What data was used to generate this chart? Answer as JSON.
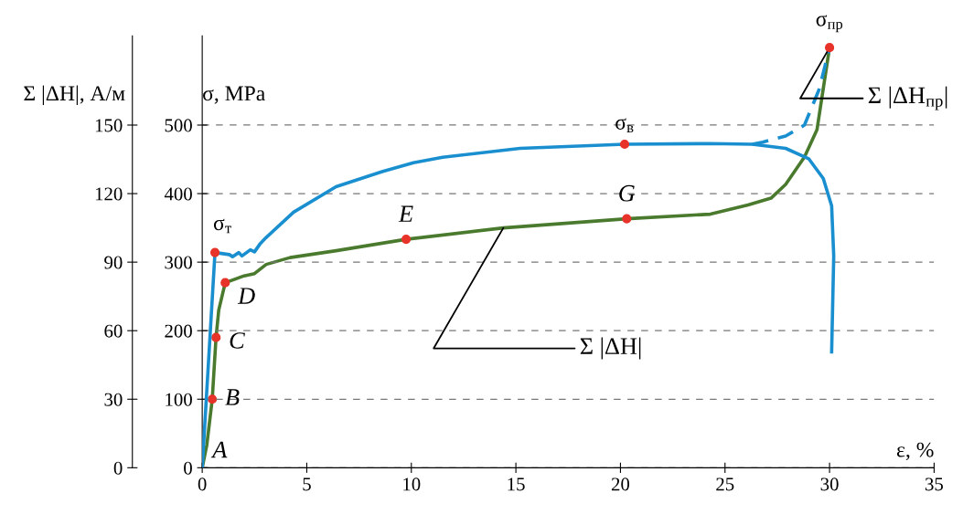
{
  "chart_data": {
    "type": "line",
    "xlabel": "ε, %",
    "ylabel": "σ, MPa",
    "y2label": "Σ |ΔH|, А/м",
    "xlim": [
      0,
      35
    ],
    "xticks": [
      0,
      5,
      10,
      15,
      20,
      25,
      30,
      35
    ],
    "ylim": [
      0,
      630
    ],
    "yticks": [
      0,
      100,
      200,
      300,
      400,
      500
    ],
    "y2lim": [
      0,
      189
    ],
    "y2ticks": [
      0,
      30,
      60,
      90,
      120,
      150
    ],
    "grid": "y",
    "series": [
      {
        "color": "#1a8fd0",
        "line_style": "solid",
        "x": [
          0,
          0.61,
          1.3,
          1.45,
          1.75,
          1.9,
          2.3,
          2.5,
          2.75,
          3.06,
          4.37,
          6.4,
          8.6,
          10.1,
          11.5,
          15.2,
          20.2,
          24.3,
          26.3,
          27.9,
          29.0,
          29.7,
          30.1,
          30.2,
          30.1
        ],
        "values": [
          0,
          314,
          311,
          308,
          314,
          309,
          318,
          315,
          326,
          336,
          373,
          410,
          432,
          445,
          453,
          466,
          472,
          473,
          472,
          466,
          451,
          422,
          382,
          309,
          169
        ]
      },
      {
        "color": "#1a8fd0",
        "line_style": "dashed",
        "x": [
          26.3,
          26.8,
          27.9,
          28.8,
          29.5,
          30.0
        ],
        "values": [
          472,
          475,
          484,
          500,
          552,
          613
        ]
      },
      {
        "color": "#4a7a2e",
        "line_style": "solid",
        "axis": "y2",
        "x": [
          0,
          0.22,
          0.48,
          0.66,
          0.79,
          1.1,
          2.0,
          2.5,
          3.06,
          4.2,
          6.4,
          9.75,
          14.4,
          20.3,
          24.3,
          26.1,
          27.2,
          27.9,
          28.8,
          29.4,
          30.0
        ],
        "values": [
          0,
          10,
          30,
          57,
          69,
          81,
          84,
          85,
          89,
          92,
          95,
          100,
          105,
          109,
          111,
          115,
          118,
          124,
          136,
          148,
          184
        ]
      },
      {
        "type": "scatter",
        "color": "#e8332a",
        "marker": "circle",
        "x": [
          0.61,
          20.2,
          30.0
        ],
        "values": [
          314,
          472,
          613
        ]
      },
      {
        "type": "scatter",
        "color": "#e8332a",
        "marker": "circle",
        "axis": "y2",
        "x": [
          0.48,
          0.66,
          1.1,
          9.75,
          20.3
        ],
        "values": [
          30,
          57,
          81,
          100,
          109
        ]
      }
    ],
    "annotations": [
      {
        "text": "σ$_{т}$",
        "x": 0.61,
        "y": 314
      },
      {
        "text": "σ$_{в}$",
        "x": 20.2,
        "y": 472
      },
      {
        "text": "σ$_{пр}$",
        "x": 30.0,
        "y": 613
      },
      {
        "text": "A",
        "x": 0,
        "y": 0
      },
      {
        "text": "B",
        "x": 0.48,
        "y": 100
      },
      {
        "text": "C",
        "x": 0.66,
        "y": 190
      },
      {
        "text": "D",
        "x": 1.1,
        "y": 270
      },
      {
        "text": "E",
        "x": 9.75,
        "y": 333
      },
      {
        "text": "G",
        "x": 20.3,
        "y": 363
      },
      {
        "text": "Σ |ΔH|",
        "x": 14.4,
        "y": 350
      },
      {
        "text": "Σ |ΔH$_{пр}$|",
        "x": 30.0,
        "y": 613
      }
    ]
  }
}
